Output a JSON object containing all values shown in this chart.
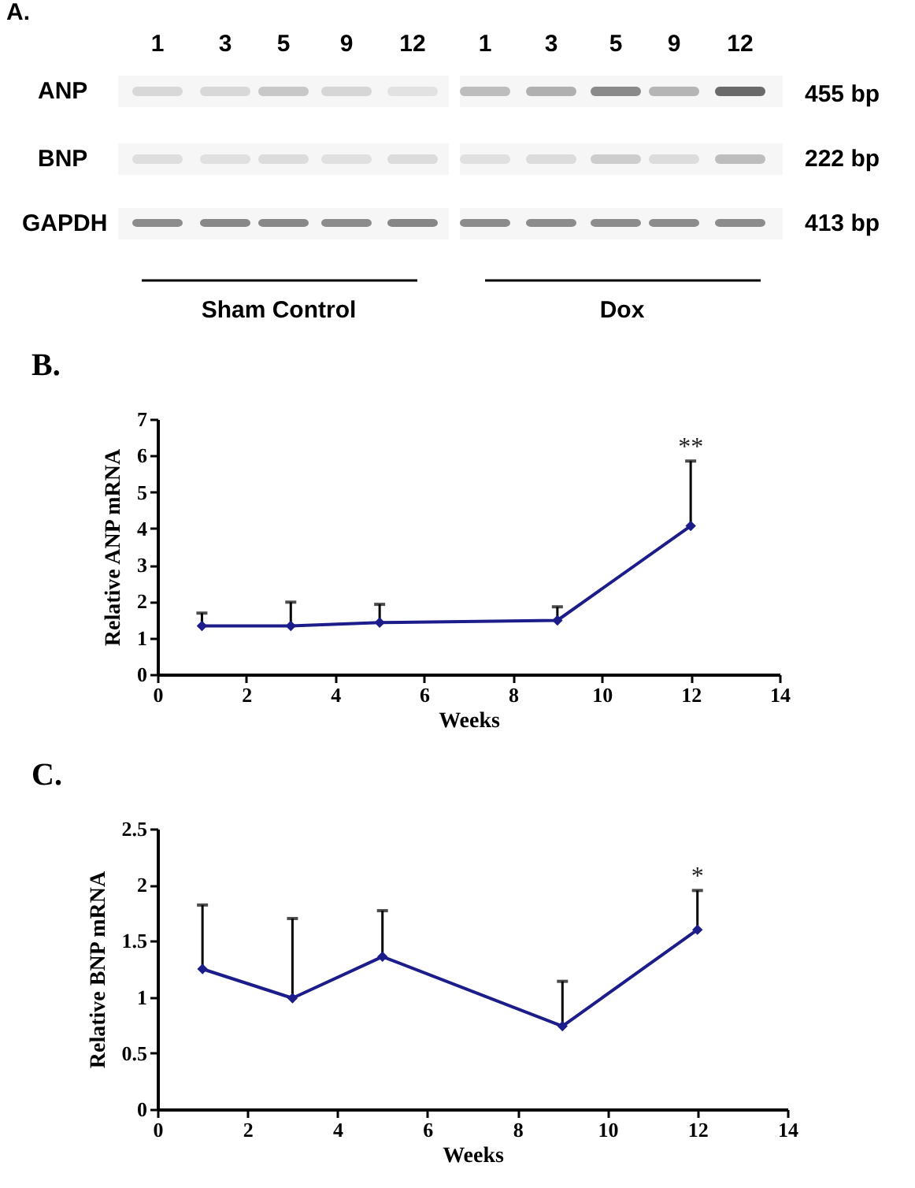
{
  "chart_data": [
    {
      "type": "other",
      "annotations": [
        "A.",
        "1",
        "3",
        "5",
        "9",
        "12",
        "1",
        "3",
        "5",
        "9",
        "12",
        "ANP",
        "BNP",
        "GAPDH",
        "455 bp",
        "222 bp",
        "413 bp",
        "Sham Control",
        "Dox"
      ]
    },
    {
      "type": "line",
      "title": "B.",
      "xlabel": "Weeks",
      "ylabel": "Relative ANP mRNA",
      "x": [
        1,
        3,
        5,
        9,
        12
      ],
      "series": [
        {
          "color": "#1c1c8a",
          "values": [
            1.33,
            1.33,
            1.42,
            1.48,
            4.07
          ],
          "errors": [
            [
              1.33,
              1.68
            ],
            [
              1.33,
              1.98
            ],
            [
              1.42,
              1.92
            ],
            [
              1.48,
              1.85
            ],
            [
              4.07,
              5.85
            ]
          ]
        }
      ],
      "xlim": [
        0,
        14
      ],
      "xticks": [
        0,
        2,
        4,
        6,
        8,
        10,
        12,
        14
      ],
      "ylim": [
        0,
        7
      ],
      "yticks": [
        0,
        1,
        2,
        3,
        4,
        5,
        6,
        7
      ],
      "marker": "diamond",
      "annotations": [
        {
          "text": "**",
          "x": 12,
          "y": 5.85
        }
      ]
    },
    {
      "type": "line",
      "title": "C.",
      "xlabel": "Weeks",
      "ylabel": "Relative BNP mRNA",
      "x": [
        1,
        3,
        5,
        9,
        12
      ],
      "series": [
        {
          "color": "#1c1c8a",
          "values": [
            1.25,
            0.99,
            1.36,
            0.74,
            1.6
          ],
          "errors": [
            [
              1.25,
              1.82
            ],
            [
              0.99,
              1.7
            ],
            [
              1.36,
              1.77
            ],
            [
              0.74,
              1.14
            ],
            [
              1.6,
              1.95
            ]
          ]
        }
      ],
      "xlim": [
        0,
        14
      ],
      "xticks": [
        0,
        2,
        4,
        6,
        8,
        10,
        12,
        14
      ],
      "ylim": [
        0,
        2.5
      ],
      "yticks": [
        0,
        0.5,
        1,
        1.5,
        2,
        2.5
      ],
      "marker": "diamond",
      "annotations": [
        {
          "text": "*",
          "x": 12,
          "y": 1.95
        }
      ]
    }
  ]
}
